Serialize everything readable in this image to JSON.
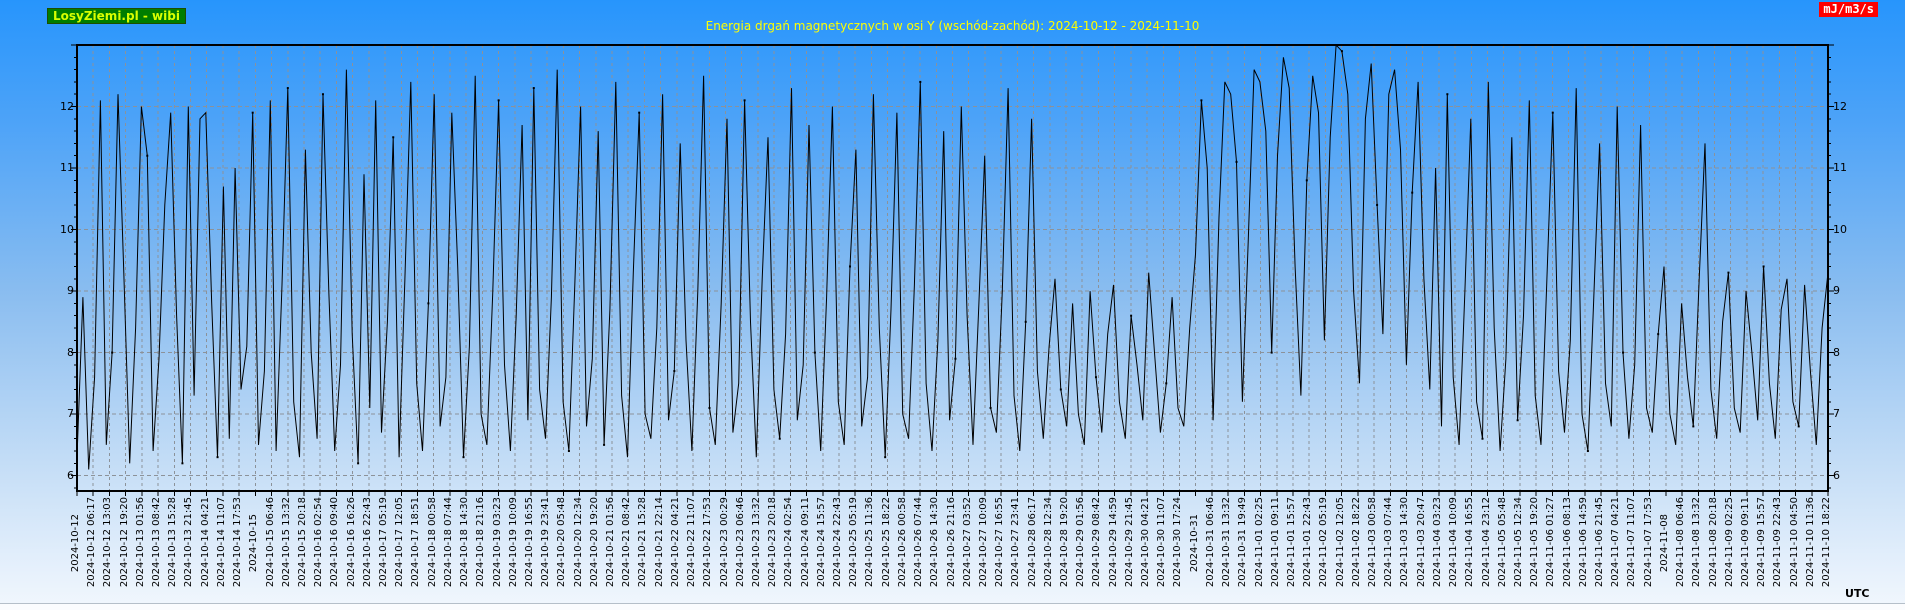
{
  "header": {
    "brand": "LosyZiemi.pl - wibi",
    "units_label": "mJ/m3/s",
    "timezone_label": "UTC"
  },
  "chart_data": {
    "type": "line",
    "title": "Energia drgań magnetycznych w osi Y (wschód-zachód): 2024-10-12 - 2024-11-10",
    "xlabel": "",
    "ylabel": "mJ/m3/s",
    "ylim": [
      5.75,
      13.0
    ],
    "y_ticks": [
      6,
      7,
      8,
      9,
      10,
      11,
      12
    ],
    "y_axis_sides": [
      "left",
      "right"
    ],
    "grid": "dashed, vertical line at every x tick, horizontal line at every integer y tick",
    "legend": "none",
    "line_color": "#000000",
    "grid_color": "#8c9299",
    "x_tick_labels": [
      "2024-10-12",
      "2024-10-12 06:17",
      "2024-10-12 13:03",
      "2024-10-12 19:20",
      "2024-10-13 01:56",
      "2024-10-13 08:42",
      "2024-10-13 15:28",
      "2024-10-13 21:45",
      "2024-10-14 04:21",
      "2024-10-14 11:07",
      "2024-10-14 17:53",
      "2024-10-15",
      "2024-10-15 06:46",
      "2024-10-15 13:32",
      "2024-10-15 20:18",
      "2024-10-16 02:54",
      "2024-10-16 09:40",
      "2024-10-16 16:26",
      "2024-10-16 22:43",
      "2024-10-17 05:19",
      "2024-10-17 12:05",
      "2024-10-17 18:51",
      "2024-10-18 00:58",
      "2024-10-18 07:44",
      "2024-10-18 14:30",
      "2024-10-18 21:16",
      "2024-10-19 03:23",
      "2024-10-19 10:09",
      "2024-10-19 16:55",
      "2024-10-19 23:41",
      "2024-10-20 05:48",
      "2024-10-20 12:34",
      "2024-10-20 19:20",
      "2024-10-21 01:56",
      "2024-10-21 08:42",
      "2024-10-21 15:28",
      "2024-10-21 22:14",
      "2024-10-22 04:21",
      "2024-10-22 11:07",
      "2024-10-22 17:53",
      "2024-10-23 00:29",
      "2024-10-23 06:46",
      "2024-10-23 13:32",
      "2024-10-23 20:18",
      "2024-10-24 02:54",
      "2024-10-24 09:11",
      "2024-10-24 15:57",
      "2024-10-24 22:43",
      "2024-10-25 05:19",
      "2024-10-25 11:36",
      "2024-10-25 18:22",
      "2024-10-26 00:58",
      "2024-10-26 07:44",
      "2024-10-26 14:30",
      "2024-10-26 21:16",
      "2024-10-27 03:52",
      "2024-10-27 10:09",
      "2024-10-27 16:55",
      "2024-10-27 23:41",
      "2024-10-28 06:17",
      "2024-10-28 12:34",
      "2024-10-28 19:20",
      "2024-10-29 01:56",
      "2024-10-29 08:42",
      "2024-10-29 14:59",
      "2024-10-29 21:45",
      "2024-10-30 04:21",
      "2024-10-30 11:07",
      "2024-10-30 17:24",
      "2024-10-31",
      "2024-10-31 06:46",
      "2024-10-31 13:32",
      "2024-10-31 19:49",
      "2024-11-01 02:25",
      "2024-11-01 09:11",
      "2024-11-01 15:57",
      "2024-11-01 22:43",
      "2024-11-02 05:19",
      "2024-11-02 12:05",
      "2024-11-02 18:22",
      "2024-11-03 00:58",
      "2024-11-03 07:44",
      "2024-11-03 14:30",
      "2024-11-03 20:47",
      "2024-11-04 03:23",
      "2024-11-04 10:09",
      "2024-11-04 16:55",
      "2024-11-04 23:12",
      "2024-11-05 05:48",
      "2024-11-05 12:34",
      "2024-11-05 19:20",
      "2024-11-06 01:27",
      "2024-11-06 08:13",
      "2024-11-06 14:59",
      "2024-11-06 21:45",
      "2024-11-07 04:21",
      "2024-11-07 11:07",
      "2024-11-07 17:53",
      "2024-11-08",
      "2024-11-08 06:46",
      "2024-11-08 13:32",
      "2024-11-08 20:18",
      "2024-11-09 02:25",
      "2024-11-09 09:11",
      "2024-11-09 15:57",
      "2024-11-09 22:43",
      "2024-11-10 04:50",
      "2024-11-10 11:36",
      "2024-11-10 18:22"
    ],
    "date_only_tick_indexes": [
      0,
      11,
      69,
      98
    ],
    "series": [
      {
        "name": "Energia drgań magnetycznych (oś Y, wschód-zachód)",
        "color": "#000000",
        "values": [
          6.3,
          8.9,
          6.1,
          7.6,
          12.1,
          6.5,
          8.0,
          12.2,
          9.3,
          6.2,
          8.4,
          12.0,
          11.2,
          6.4,
          7.9,
          10.4,
          11.9,
          8.6,
          6.2,
          12.0,
          7.3,
          11.8,
          11.9,
          8.8,
          6.3,
          10.7,
          6.6,
          11.0,
          7.4,
          8.1,
          11.9,
          6.5,
          7.7,
          12.1,
          6.4,
          9.1,
          12.3,
          7.2,
          6.3,
          11.3,
          8.0,
          6.6,
          12.2,
          9.0,
          6.4,
          7.8,
          12.6,
          8.3,
          6.2,
          10.9,
          7.1,
          12.1,
          6.7,
          8.5,
          11.5,
          6.3,
          9.2,
          12.4,
          7.5,
          6.4,
          8.8,
          12.2,
          6.8,
          7.6,
          11.9,
          9.4,
          6.3,
          8.1,
          12.5,
          7.0,
          6.5,
          9.0,
          12.1,
          7.8,
          6.4,
          8.6,
          11.7,
          6.9,
          12.3,
          7.4,
          6.6,
          8.9,
          12.6,
          7.2,
          6.4,
          9.1,
          12.0,
          6.8,
          7.9,
          11.6,
          6.5,
          8.7,
          12.4,
          7.3,
          6.3,
          9.3,
          11.9,
          7.0,
          6.6,
          8.4,
          12.2,
          6.9,
          7.7,
          11.4,
          8.2,
          6.4,
          9.0,
          12.5,
          7.1,
          6.5,
          8.8,
          11.8,
          6.7,
          7.5,
          12.1,
          8.5,
          6.3,
          9.2,
          11.5,
          7.4,
          6.6,
          8.3,
          12.3,
          6.9,
          7.8,
          11.7,
          8.0,
          6.4,
          8.9,
          12.0,
          7.2,
          6.5,
          9.4,
          11.3,
          6.8,
          7.6,
          12.2,
          8.4,
          6.3,
          8.7,
          11.9,
          7.0,
          6.6,
          9.1,
          12.4,
          7.5,
          6.4,
          8.2,
          11.6,
          6.9,
          7.9,
          12.0,
          8.6,
          6.5,
          8.8,
          11.2,
          7.1,
          6.7,
          9.0,
          12.3,
          7.3,
          6.4,
          8.5,
          11.8,
          7.7,
          6.6,
          8.1,
          9.2,
          7.4,
          6.8,
          8.8,
          7.0,
          6.5,
          9.0,
          7.6,
          6.7,
          8.3,
          9.1,
          7.2,
          6.6,
          8.6,
          7.8,
          6.9,
          9.3,
          8.0,
          6.7,
          7.5,
          8.9,
          7.1,
          6.8,
          8.4,
          9.6,
          12.1,
          11.0,
          6.9,
          10.2,
          12.4,
          12.2,
          11.1,
          7.2,
          9.8,
          12.6,
          12.4,
          11.6,
          8.0,
          11.2,
          12.8,
          12.3,
          9.4,
          7.3,
          10.8,
          12.5,
          11.9,
          8.2,
          11.5,
          13.0,
          12.9,
          12.2,
          9.0,
          7.5,
          11.8,
          12.7,
          10.4,
          8.3,
          12.2,
          12.6,
          11.3,
          7.8,
          10.6,
          12.4,
          9.2,
          7.4,
          11.0,
          6.8,
          12.2,
          7.6,
          6.5,
          9.0,
          11.8,
          7.2,
          6.6,
          12.4,
          8.4,
          6.4,
          7.9,
          11.5,
          6.9,
          8.6,
          12.1,
          7.3,
          6.5,
          9.2,
          11.9,
          7.7,
          6.7,
          8.2,
          12.3,
          7.0,
          6.4,
          8.9,
          11.4,
          7.5,
          6.8,
          12.0,
          8.0,
          6.6,
          7.8,
          11.7,
          7.1,
          6.7,
          8.3,
          9.4,
          7.0,
          6.5,
          8.8,
          7.6,
          6.8,
          9.2,
          11.4,
          7.4,
          6.6,
          8.5,
          9.3,
          7.1,
          6.7,
          9.0,
          8.0,
          6.9,
          9.4,
          7.5,
          6.6,
          8.7,
          9.2,
          7.2,
          6.8,
          9.1,
          7.7,
          6.5,
          8.4,
          9.3
        ]
      }
    ]
  },
  "colors": {
    "background_top": "#2795fc",
    "background_bottom": "#f2f7fd",
    "title_text": "#ffff00",
    "brand_bg": "#007d00",
    "brand_text": "#d8ff00",
    "units_bg": "#ff0000",
    "units_text": "#ffffff",
    "axis": "#000000",
    "grid": "#8c9299",
    "tick_text": "#000000"
  }
}
